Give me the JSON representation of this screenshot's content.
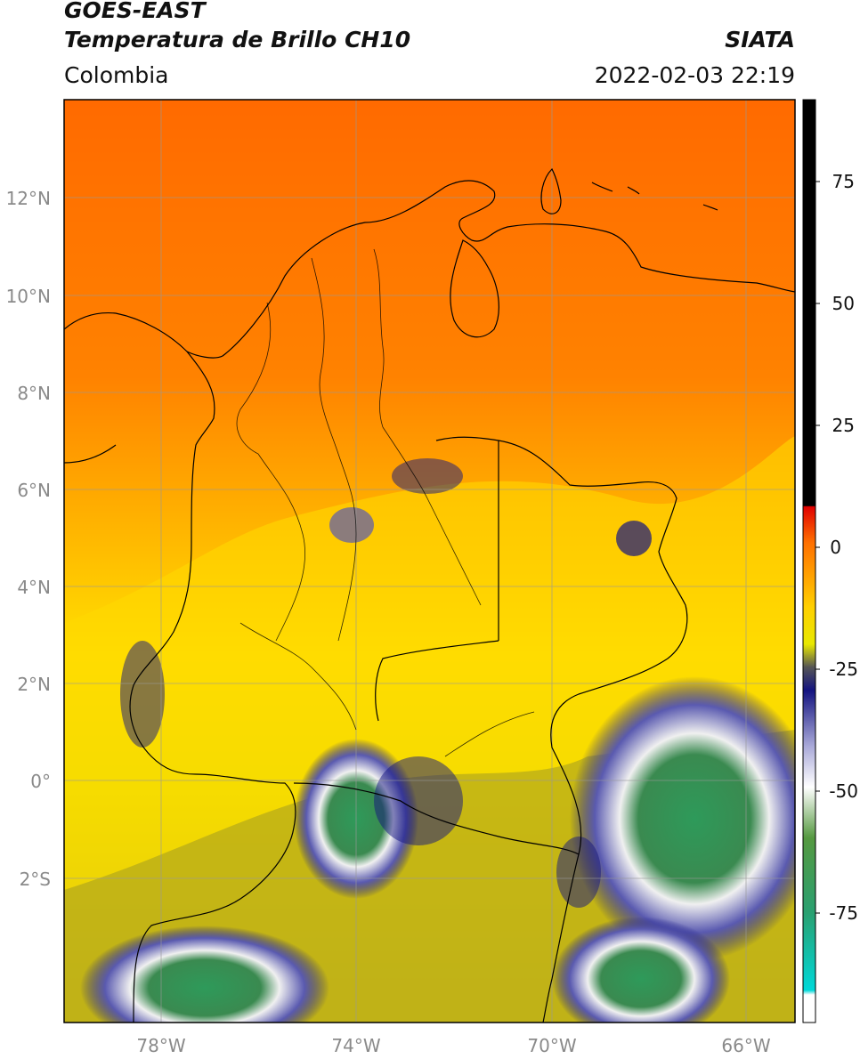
{
  "header": {
    "satellite": "GOES-EAST",
    "product": "Temperatura de Brillo CH10",
    "region": "Colombia",
    "org": "SIATA",
    "datetime": "2022-02-03 22:19"
  },
  "map": {
    "lat_labels": [
      "12°N",
      "10°N",
      "8°N",
      "6°N",
      "4°N",
      "2°N",
      "0°",
      "2°S"
    ],
    "lon_labels": [
      "78°W",
      "74°W",
      "70°W",
      "66°W"
    ]
  },
  "colorbar": {
    "ticks": [
      "75",
      "50",
      "25",
      "0",
      "-25",
      "-50",
      "-75"
    ]
  }
}
